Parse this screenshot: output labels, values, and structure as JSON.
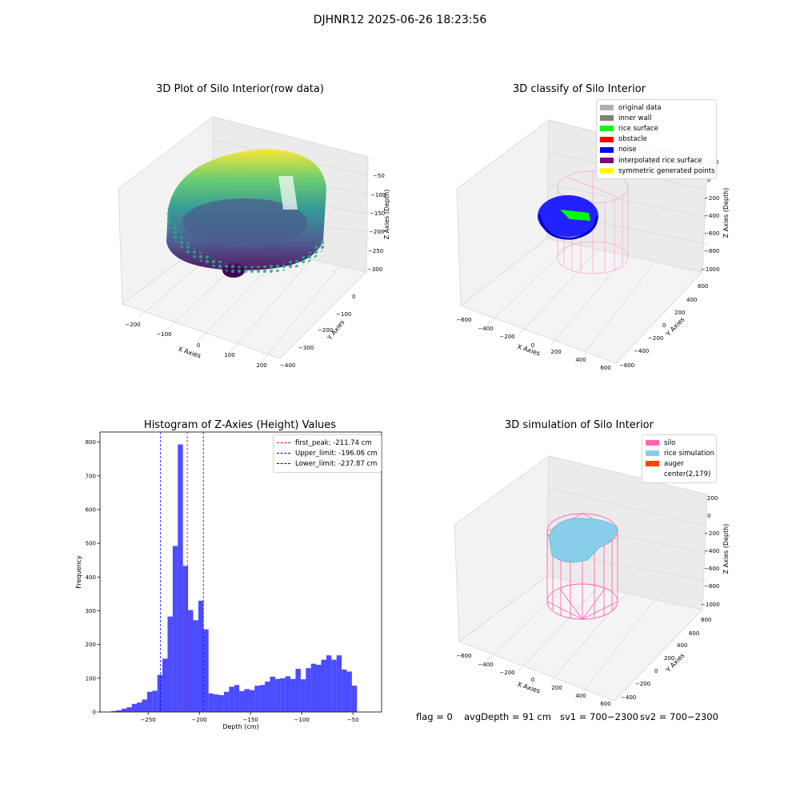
{
  "figure": {
    "suptitle": "DJHNR12 2025-06-26 18:23:56"
  },
  "panels": {
    "raw": {
      "title": "3D Plot of Silo Interior(row data)",
      "xlabel": "X Axies",
      "ylabel": "Y Axies",
      "zlabel": "Z Axies (Depth)",
      "xticks": [
        "−200",
        "−100",
        "0",
        "100",
        "200"
      ],
      "yticks": [
        "0",
        "−100",
        "−200",
        "−300",
        "−400"
      ],
      "zticks": [
        "−50",
        "−100",
        "−150",
        "−200",
        "−250",
        "−300"
      ]
    },
    "classify": {
      "title": "3D classify of Silo Interior",
      "xlabel": "X Axies",
      "ylabel": "Y Axies",
      "zlabel": "Z Axies (Depth)",
      "xticks": [
        "−600",
        "−400",
        "−200",
        "0",
        "200",
        "400",
        "600"
      ],
      "yticks": [
        "600",
        "400",
        "200",
        "0",
        "−200",
        "−400",
        "−600"
      ],
      "zticks": [
        "200",
        "0",
        "−200",
        "−400",
        "−600",
        "−800",
        "−1000"
      ],
      "legend": [
        {
          "label": "original data",
          "color": "#b0b0b0"
        },
        {
          "label": "inner wall",
          "color": "#808080"
        },
        {
          "label": "rice surface",
          "color": "#00ff00"
        },
        {
          "label": "obstacle",
          "color": "#ff0000"
        },
        {
          "label": "noise",
          "color": "#0000ff"
        },
        {
          "label": "interpolated rice surface",
          "color": "#800080"
        },
        {
          "label": "symmetric generated points",
          "color": "#ffff00"
        }
      ]
    },
    "simulation": {
      "title": "3D simulation of Silo Interior",
      "xlabel": "X Axies",
      "ylabel": "Y Axies",
      "zlabel": "Z Axies (Depth)",
      "xticks": [
        "−600",
        "−400",
        "−200",
        "0",
        "200",
        "400",
        "600"
      ],
      "yticks": [
        "800",
        "600",
        "400",
        "200",
        "0",
        "−200",
        "−400"
      ],
      "zticks": [
        "200",
        "0",
        "−200",
        "−400",
        "−600",
        "−800",
        "−1000"
      ],
      "legend": [
        {
          "label": "silo",
          "color": "#ff69b4"
        },
        {
          "label": "rice simulation",
          "color": "#87ceeb"
        },
        {
          "label": "auger",
          "color": "#ff4500"
        },
        {
          "label": "center(2,179)",
          "color": ""
        }
      ]
    }
  },
  "status": {
    "flag": "flag = 0",
    "avg_depth": "avgDepth = 91 cm",
    "sv1": "sv1 = 700~2300",
    "sv2": "sv2 = 700~2300"
  },
  "chart_data": {
    "type": "bar",
    "title": "Histogram of Z-Axies (Height) Values",
    "xlabel": "Depth (cm)",
    "ylabel": "Frequency",
    "xlim": [
      -297,
      -22
    ],
    "ylim": [
      0,
      830
    ],
    "xticks": [
      -250,
      -200,
      -150,
      -100,
      -50
    ],
    "yticks": [
      0,
      100,
      200,
      300,
      400,
      500,
      600,
      700,
      800
    ],
    "bin_width": 5,
    "bin_start": -286,
    "values": [
      3,
      5,
      10,
      14,
      24,
      28,
      37,
      60,
      63,
      110,
      158,
      283,
      492,
      793,
      433,
      302,
      272,
      330,
      245,
      55,
      52,
      50,
      60,
      75,
      80,
      62,
      68,
      65,
      78,
      80,
      90,
      105,
      98,
      100,
      106,
      98,
      128,
      97,
      130,
      143,
      140,
      155,
      168,
      155,
      168,
      126,
      120,
      78
    ],
    "bar_color": "#0000ff",
    "vlines": [
      {
        "x": -211.74,
        "color": "#ff0000",
        "label": "first_peak: -211.74 cm"
      },
      {
        "x": -196.06,
        "color": "#0000ff",
        "label": "Upper_limit: -196.06 cm"
      },
      {
        "x": -237.87,
        "color": "#0000ff",
        "label": "Lower_limit: -237.87 cm"
      }
    ],
    "legend_position": "upper right"
  }
}
